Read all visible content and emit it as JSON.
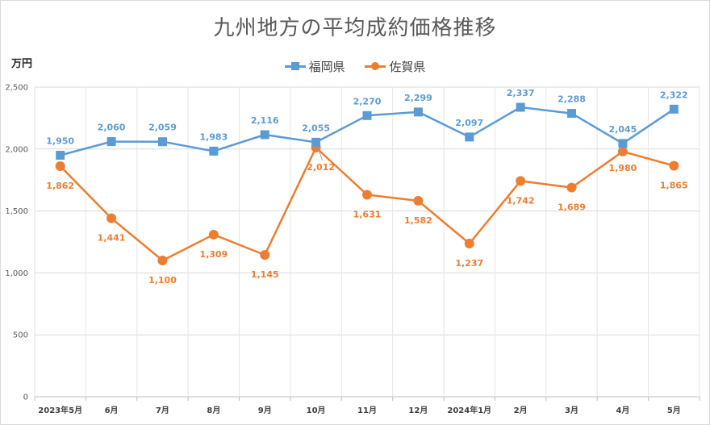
{
  "chart_data": {
    "type": "line",
    "title": "九州地方の平均成約価格推移",
    "ylabel": "万円",
    "xlabel": "",
    "categories": [
      "2023年5月",
      "6月",
      "7月",
      "8月",
      "9月",
      "10月",
      "11月",
      "12月",
      "2024年1月",
      "2月",
      "3月",
      "4月",
      "5月"
    ],
    "ylim": [
      0,
      2500
    ],
    "yticks": [
      0,
      500,
      1000,
      1500,
      2000,
      2500
    ],
    "ytick_labels": [
      "0",
      "500",
      "1,000",
      "1,500",
      "2,000",
      "2,500"
    ],
    "grid": true,
    "legend_position": "top-center",
    "series": [
      {
        "name": "福岡県",
        "color": "#5b9bd5",
        "marker": "square",
        "values": [
          1950,
          2060,
          2059,
          1983,
          2116,
          2055,
          2270,
          2299,
          2097,
          2337,
          2288,
          2045,
          2322
        ],
        "labels": [
          "1,950",
          "2,060",
          "2,059",
          "1,983",
          "2,116",
          "2,055",
          "2,270",
          "2,299",
          "2,097",
          "2,337",
          "2,288",
          "2,045",
          "2,322"
        ]
      },
      {
        "name": "佐賀県",
        "color": "#ed7d31",
        "marker": "circle",
        "values": [
          1862,
          1441,
          1100,
          1309,
          1145,
          2012,
          1631,
          1582,
          1237,
          1742,
          1689,
          1980,
          1865
        ],
        "labels": [
          "1,862",
          "1,441",
          "1,100",
          "1,309",
          "1,145",
          "2,012",
          "1,631",
          "1,582",
          "1,237",
          "1,742",
          "1,689",
          "1,980",
          "1,865"
        ]
      }
    ]
  }
}
